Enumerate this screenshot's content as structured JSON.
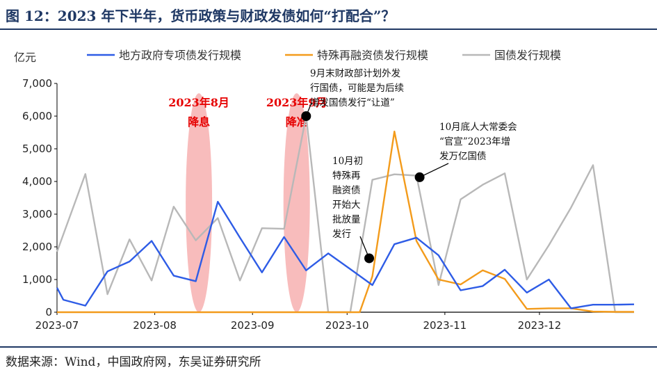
{
  "header": {
    "title": "图 12：2023 年下半年，货币政策与财政发债如何“打配合”？"
  },
  "footer": {
    "source": "数据来源：Wind，中国政府网，东吴证券研究所"
  },
  "chart_data": {
    "type": "line",
    "ylabel": "亿元",
    "ylim": [
      0,
      7000
    ],
    "yticks": [
      0,
      1000,
      2000,
      3000,
      4000,
      5000,
      6000,
      7000
    ],
    "ytick_labels": [
      "0",
      "1,000",
      "2,000",
      "3,000",
      "4,000",
      "5,000",
      "6,000",
      "7,000"
    ],
    "xlim": [
      "2023-07-01",
      "2023-12-31"
    ],
    "xticks": [
      "2023-07-01",
      "2023-08-01",
      "2023-09-01",
      "2023-10-01",
      "2023-11-01",
      "2023-12-01"
    ],
    "xtick_labels": [
      "2023-07",
      "2023-08",
      "2023-09",
      "2023-10",
      "2023-11",
      "2023-12"
    ],
    "legend_position": "top",
    "series": [
      {
        "name": "地方政府专项债发行规模",
        "color": "#2e5ce6",
        "x": [
          "2023-07-01",
          "2023-07-03",
          "2023-07-10",
          "2023-07-17",
          "2023-07-24",
          "2023-07-31",
          "2023-08-07",
          "2023-08-14",
          "2023-08-21",
          "2023-08-28",
          "2023-09-04",
          "2023-09-11",
          "2023-09-18",
          "2023-09-25",
          "2023-10-02",
          "2023-10-09",
          "2023-10-16",
          "2023-10-23",
          "2023-10-30",
          "2023-11-06",
          "2023-11-13",
          "2023-11-20",
          "2023-11-27",
          "2023-12-04",
          "2023-12-11",
          "2023-12-18",
          "2023-12-25",
          "2023-12-31"
        ],
        "values": [
          750,
          380,
          200,
          1250,
          1550,
          2180,
          1120,
          950,
          3380,
          2280,
          1220,
          2300,
          1280,
          1800,
          1320,
          830,
          2080,
          2280,
          1740,
          670,
          800,
          1300,
          600,
          1000,
          120,
          230,
          230,
          240
        ]
      },
      {
        "name": "特殊再融资债发行规模",
        "color": "#f39b1b",
        "x": [
          "2023-07-01",
          "2023-10-05",
          "2023-10-09",
          "2023-10-16",
          "2023-10-23",
          "2023-10-30",
          "2023-11-06",
          "2023-11-13",
          "2023-11-20",
          "2023-11-27",
          "2023-12-04",
          "2023-12-11",
          "2023-12-18",
          "2023-12-25",
          "2023-12-31"
        ],
        "values": [
          0,
          0,
          1100,
          5530,
          2180,
          1000,
          850,
          1280,
          1020,
          100,
          120,
          120,
          20,
          10,
          10
        ]
      },
      {
        "name": "国债发行规模",
        "color": "#b8b8b8",
        "x": [
          "2023-07-01",
          "2023-07-10",
          "2023-07-17",
          "2023-07-24",
          "2023-07-31",
          "2023-08-07",
          "2023-08-14",
          "2023-08-21",
          "2023-08-28",
          "2023-09-04",
          "2023-09-11",
          "2023-09-18",
          "2023-09-25",
          "2023-10-02",
          "2023-10-09",
          "2023-10-16",
          "2023-10-23",
          "2023-10-30",
          "2023-11-06",
          "2023-11-13",
          "2023-11-20",
          "2023-11-27",
          "2023-12-04",
          "2023-12-11",
          "2023-12-18",
          "2023-12-25",
          "2023-12-31"
        ],
        "values": [
          1850,
          4230,
          550,
          2230,
          970,
          3230,
          2200,
          2880,
          970,
          2570,
          2550,
          6000,
          0,
          0,
          4050,
          4220,
          4180,
          830,
          3450,
          3900,
          4250,
          1000,
          2050,
          3200,
          4500,
          0,
          0
        ]
      }
    ],
    "highlights": [
      {
        "label_line1": "2023年8月",
        "label_line2": "降息",
        "date": "2023-08-15",
        "color": "#f6a5a5",
        "text_color": "#e60000"
      },
      {
        "label_line1": "2023年9月",
        "label_line2": "降准",
        "date": "2023-09-15",
        "color": "#f6a5a5",
        "text_color": "#e60000"
      }
    ],
    "annotations": [
      {
        "lines": [
          "9月末财政部计划外发",
          "行国债，可能是为后续",
          "增发国债发行“让道”"
        ],
        "x": "2023-09-18",
        "y": 6000
      },
      {
        "lines": [
          "10月初",
          "特殊再",
          "融资债",
          "开始大",
          "批放量",
          "发行"
        ],
        "x": "2023-10-08",
        "y": 1650
      },
      {
        "lines": [
          "10月底人大常委会",
          "“官宣”2023年增",
          "发万亿国债"
        ],
        "x": "2023-10-24",
        "y": 4130
      }
    ]
  }
}
